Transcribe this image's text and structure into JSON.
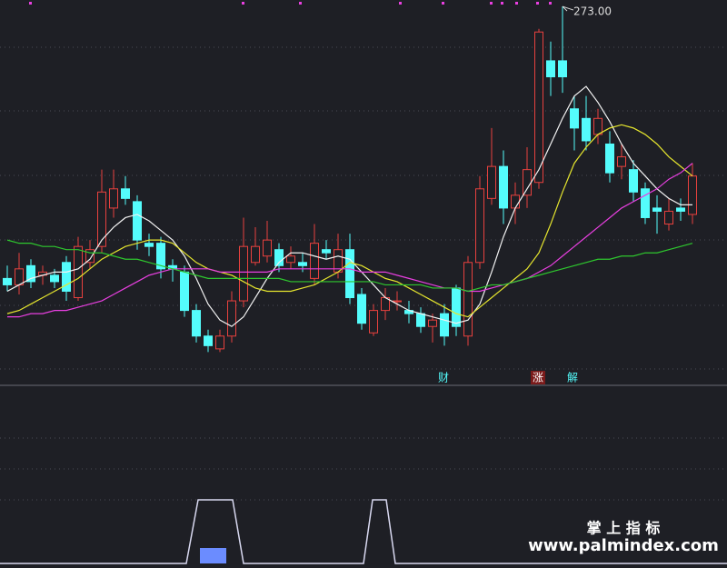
{
  "chart_data": {
    "type": "candlestick",
    "ylim": [
      160,
      275
    ],
    "up_color": "#e8413e",
    "down_color": "#54fcfc",
    "candles": [
      {
        "o": 188,
        "c": 186,
        "h": 192,
        "l": 184
      },
      {
        "o": 186,
        "c": 191,
        "h": 196,
        "l": 183
      },
      {
        "o": 192,
        "c": 187,
        "h": 194,
        "l": 185
      },
      {
        "o": 189,
        "c": 190,
        "h": 192,
        "l": 186
      },
      {
        "o": 189,
        "c": 187,
        "h": 191,
        "l": 185
      },
      {
        "o": 193,
        "c": 184,
        "h": 195,
        "l": 181
      },
      {
        "o": 182,
        "c": 198,
        "h": 201,
        "l": 181
      },
      {
        "o": 193,
        "c": 197,
        "h": 200,
        "l": 191
      },
      {
        "o": 198,
        "c": 215,
        "h": 222,
        "l": 196
      },
      {
        "o": 210,
        "c": 216,
        "h": 222,
        "l": 207
      },
      {
        "o": 216,
        "c": 213,
        "h": 220,
        "l": 211
      },
      {
        "o": 212,
        "c": 200,
        "h": 214,
        "l": 197
      },
      {
        "o": 199,
        "c": 198,
        "h": 202,
        "l": 195
      },
      {
        "o": 199,
        "c": 191,
        "h": 201,
        "l": 188
      },
      {
        "o": 192,
        "c": 191,
        "h": 194,
        "l": 187
      },
      {
        "o": 190,
        "c": 178,
        "h": 192,
        "l": 176
      },
      {
        "o": 178,
        "c": 170,
        "h": 180,
        "l": 168
      },
      {
        "o": 170,
        "c": 167,
        "h": 172,
        "l": 165
      },
      {
        "o": 166,
        "c": 170,
        "h": 172,
        "l": 165
      },
      {
        "o": 170,
        "c": 181,
        "h": 184,
        "l": 168
      },
      {
        "o": 181,
        "c": 198,
        "h": 207,
        "l": 179
      },
      {
        "o": 193,
        "c": 198,
        "h": 204,
        "l": 192
      },
      {
        "o": 195,
        "c": 200,
        "h": 206,
        "l": 193
      },
      {
        "o": 197,
        "c": 192,
        "h": 199,
        "l": 190
      },
      {
        "o": 193,
        "c": 195,
        "h": 198,
        "l": 191
      },
      {
        "o": 193,
        "c": 192,
        "h": 196,
        "l": 190
      },
      {
        "o": 188,
        "c": 199,
        "h": 205,
        "l": 186
      },
      {
        "o": 197,
        "c": 196,
        "h": 200,
        "l": 194
      },
      {
        "o": 190,
        "c": 197,
        "h": 202,
        "l": 188
      },
      {
        "o": 197,
        "c": 182,
        "h": 202,
        "l": 180
      },
      {
        "o": 183,
        "c": 174,
        "h": 185,
        "l": 172
      },
      {
        "o": 171,
        "c": 178,
        "h": 180,
        "l": 170
      },
      {
        "o": 178,
        "c": 182,
        "h": 185,
        "l": 175
      },
      {
        "o": 181,
        "c": 181,
        "h": 184,
        "l": 178
      },
      {
        "o": 178,
        "c": 177,
        "h": 181,
        "l": 174
      },
      {
        "o": 177,
        "c": 173,
        "h": 179,
        "l": 171
      },
      {
        "o": 173,
        "c": 175,
        "h": 177,
        "l": 168
      },
      {
        "o": 177,
        "c": 170,
        "h": 180,
        "l": 167
      },
      {
        "o": 185,
        "c": 173,
        "h": 186,
        "l": 170
      },
      {
        "o": 170,
        "c": 193,
        "h": 195,
        "l": 167
      },
      {
        "o": 193,
        "c": 216,
        "h": 220,
        "l": 191
      },
      {
        "o": 213,
        "c": 223,
        "h": 235,
        "l": 211
      },
      {
        "o": 223,
        "c": 210,
        "h": 228,
        "l": 205
      },
      {
        "o": 210,
        "c": 214,
        "h": 218,
        "l": 205
      },
      {
        "o": 214,
        "c": 222,
        "h": 229,
        "l": 210
      },
      {
        "o": 218,
        "c": 265,
        "h": 266,
        "l": 216
      },
      {
        "o": 256,
        "c": 251,
        "h": 262,
        "l": 245
      },
      {
        "o": 256,
        "c": 251,
        "h": 273,
        "l": 246
      },
      {
        "o": 241,
        "c": 235,
        "h": 245,
        "l": 228
      },
      {
        "o": 238,
        "c": 231,
        "h": 245,
        "l": 228
      },
      {
        "o": 233,
        "c": 238,
        "h": 241,
        "l": 230
      },
      {
        "o": 230,
        "c": 221,
        "h": 234,
        "l": 218
      },
      {
        "o": 223,
        "c": 226,
        "h": 230,
        "l": 219
      },
      {
        "o": 222,
        "c": 215,
        "h": 225,
        "l": 212
      },
      {
        "o": 216,
        "c": 207,
        "h": 218,
        "l": 205
      },
      {
        "o": 210,
        "c": 209,
        "h": 214,
        "l": 202
      },
      {
        "o": 205,
        "c": 209,
        "h": 213,
        "l": 203
      },
      {
        "o": 210,
        "c": 209,
        "h": 213,
        "l": 206
      },
      {
        "o": 208,
        "c": 220,
        "h": 224,
        "l": 205
      }
    ],
    "series": [
      {
        "color": "#f2f2f2",
        "values": [
          184,
          186,
          188,
          189,
          190,
          190,
          191,
          194,
          200,
          204,
          207,
          208,
          206,
          203,
          200,
          195,
          188,
          180,
          175,
          173,
          176,
          182,
          188,
          193,
          196,
          196,
          195,
          194,
          195,
          194,
          190,
          186,
          182,
          180,
          178,
          177,
          176,
          175,
          174,
          175,
          180,
          190,
          201,
          210,
          216,
          222,
          230,
          238,
          245,
          248,
          243,
          237,
          230,
          224,
          220,
          216,
          213,
          211,
          211
        ]
      },
      {
        "color": "#e6e62e",
        "values": [
          177,
          178,
          180,
          182,
          184,
          186,
          188,
          191,
          194,
          196,
          198,
          199,
          200,
          200,
          199,
          196,
          193,
          191,
          190,
          189,
          187,
          185,
          184,
          184,
          184,
          185,
          186,
          188,
          190,
          193,
          192,
          190,
          188,
          187,
          185,
          183,
          181,
          179,
          177,
          176,
          179,
          182,
          185,
          188,
          191,
          196,
          205,
          215,
          224,
          229,
          233,
          235,
          236,
          235,
          233,
          230,
          226,
          223,
          220
        ]
      },
      {
        "color": "#e83fe0",
        "values": [
          176,
          176,
          177,
          177,
          178,
          178,
          179,
          180,
          181,
          183,
          185,
          187,
          189,
          190,
          191,
          191,
          191,
          191,
          190,
          190,
          190,
          190,
          190,
          191,
          191,
          191,
          191,
          191,
          191,
          191,
          190,
          190,
          190,
          189,
          188,
          187,
          186,
          185,
          185,
          184,
          184,
          185,
          186,
          187,
          188,
          190,
          192,
          195,
          198,
          201,
          204,
          207,
          210,
          212,
          214,
          216,
          219,
          221,
          224
        ]
      },
      {
        "color": "#2ec82e",
        "values": [
          200,
          199,
          199,
          198,
          198,
          197,
          197,
          196,
          196,
          195,
          194,
          194,
          193,
          192,
          191,
          190,
          189,
          188,
          188,
          188,
          188,
          188,
          188,
          188,
          187,
          187,
          187,
          187,
          187,
          187,
          187,
          187,
          186,
          186,
          186,
          186,
          185,
          185,
          185,
          184,
          185,
          186,
          186,
          187,
          188,
          189,
          190,
          191,
          192,
          193,
          194,
          194,
          195,
          195,
          196,
          196,
          197,
          198,
          199
        ]
      }
    ],
    "max_label": "273.00",
    "signals": [
      "财",
      "涨",
      "解"
    ]
  },
  "watermark": {
    "title": "掌 上 指 标",
    "url": "www.palmindex.com"
  }
}
